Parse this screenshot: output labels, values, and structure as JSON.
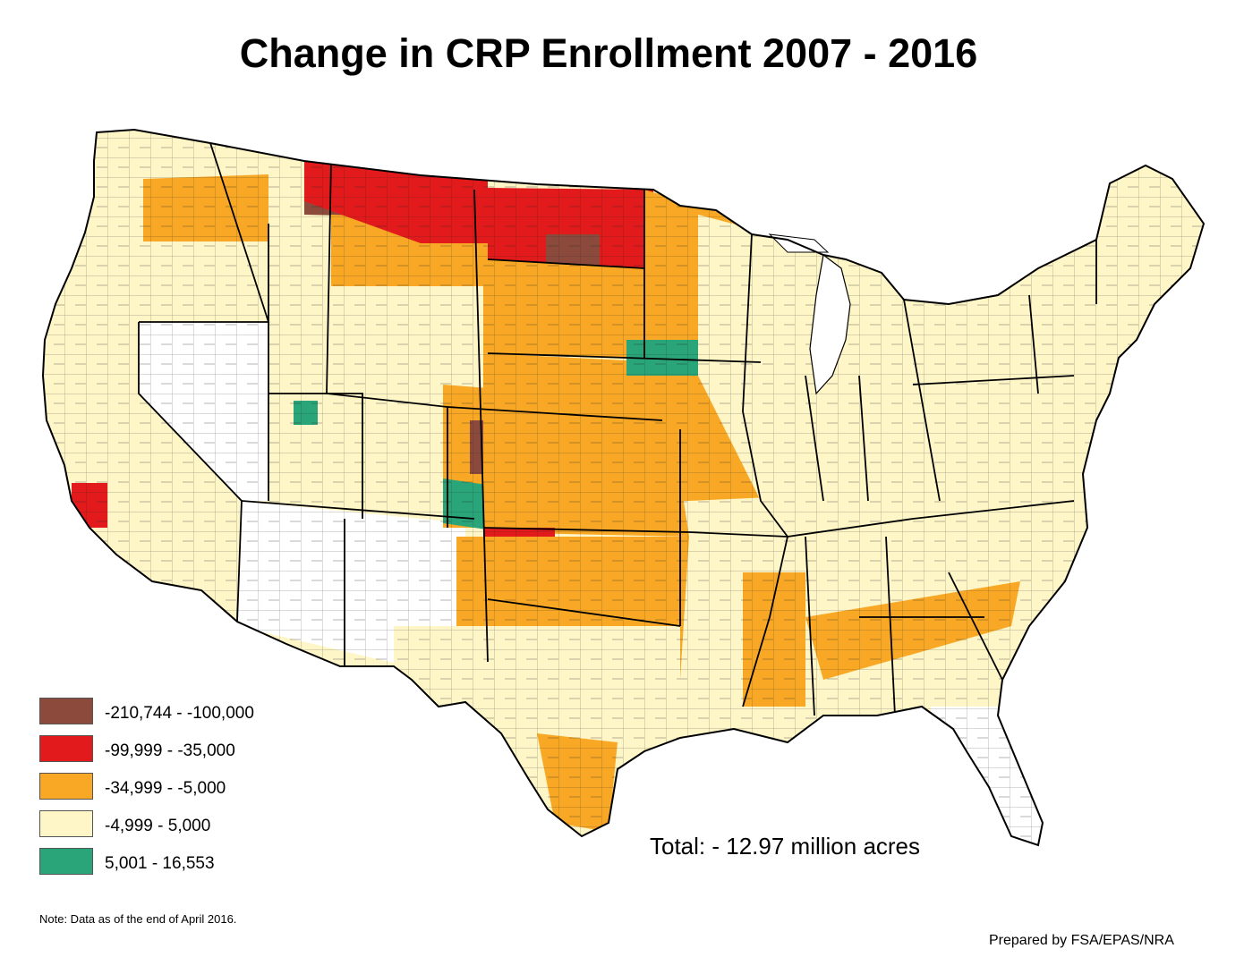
{
  "title": "Change in CRP Enrollment 2007 - 2016",
  "legend": [
    {
      "label": "-210,744 - -100,000",
      "color": "#8b4a3c"
    },
    {
      "label": "-99,999 - -35,000",
      "color": "#e31a1c"
    },
    {
      "label": "-34,999 - -5,000",
      "color": "#f9a825"
    },
    {
      "label": "-4,999 - 5,000",
      "color": "#fff6c8"
    },
    {
      "label": "5,001 - 16,553",
      "color": "#2aa57a"
    }
  ],
  "no_change_color": "#ffffff",
  "total": "Total: - 12.97 million acres",
  "note": "Note: Data as of the end of April 2016.",
  "credit": "Prepared by FSA/EPAS/NRA",
  "regions": [
    {
      "name": "northwest",
      "class": 3
    },
    {
      "name": "california",
      "class": 3
    },
    {
      "name": "great-basin",
      "class": 5
    },
    {
      "name": "southwest",
      "class": 5
    },
    {
      "name": "idaho-montana-west",
      "class": 2
    },
    {
      "name": "montana-north",
      "class": 0
    },
    {
      "name": "montana-south",
      "class": 2
    },
    {
      "name": "montana-core",
      "class": 1
    },
    {
      "name": "wyoming",
      "class": 3
    },
    {
      "name": "colorado-east",
      "class": 2
    },
    {
      "name": "colorado-core",
      "class": 0
    },
    {
      "name": "utah-green",
      "class": 4
    },
    {
      "name": "colorado-green",
      "class": 4
    },
    {
      "name": "north-dakota",
      "class": 1
    },
    {
      "name": "north-dakota-core",
      "class": 0
    },
    {
      "name": "south-dakota",
      "class": 2
    },
    {
      "name": "nebraska-kansas",
      "class": 2
    },
    {
      "name": "kansas-south",
      "class": 1
    },
    {
      "name": "oklahoma-texas-panhandle",
      "class": 2
    },
    {
      "name": "texas",
      "class": 3
    },
    {
      "name": "south-texas",
      "class": 2
    },
    {
      "name": "minnesota",
      "class": 2
    },
    {
      "name": "iowa",
      "class": 2
    },
    {
      "name": "iowa-green",
      "class": 4
    },
    {
      "name": "missouri-illinois",
      "class": 2
    },
    {
      "name": "upper-midwest",
      "class": 3
    },
    {
      "name": "michigan",
      "class": 3
    },
    {
      "name": "kentucky-green",
      "class": 4
    },
    {
      "name": "southeast",
      "class": 3
    },
    {
      "name": "georgia-carolinas",
      "class": 2
    },
    {
      "name": "mississippi",
      "class": 2
    },
    {
      "name": "florida",
      "class": 5
    },
    {
      "name": "northeast",
      "class": 3
    },
    {
      "name": "maine",
      "class": 3
    },
    {
      "name": "socal",
      "class": 1
    }
  ]
}
